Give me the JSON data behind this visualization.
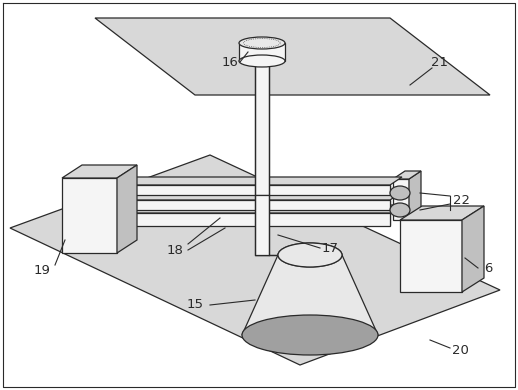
{
  "bg_color": "#ffffff",
  "line_color": "#2a2a2a",
  "fill_light": "#e8e8e8",
  "fill_mid": "#c0c0c0",
  "fill_dark": "#a0a0a0",
  "fill_plate": "#d8d8d8",
  "fill_white": "#f5f5f5",
  "label_fontsize": 9.5
}
